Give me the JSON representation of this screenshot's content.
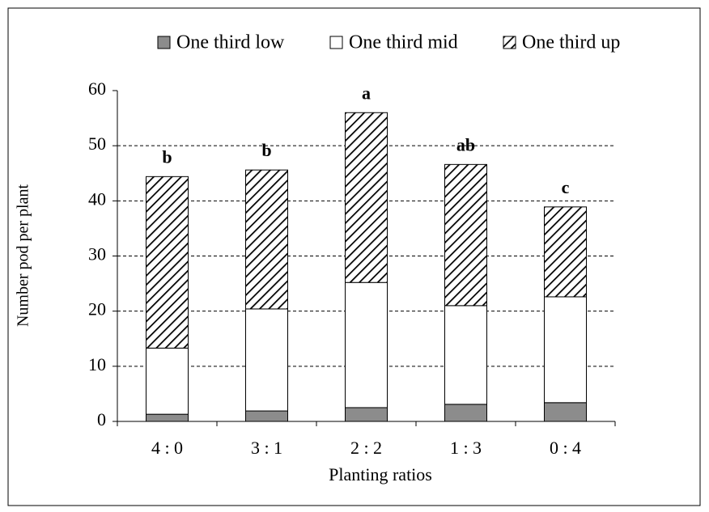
{
  "chart_data": {
    "type": "stacked_bar",
    "ylabel": "Number pod per plant",
    "xlabel": "Planting ratios",
    "categories": [
      "4 : 0",
      "3 : 1",
      "2 : 2",
      "1 : 3",
      "0 : 4"
    ],
    "series": [
      {
        "name": "One third low",
        "color": "#8c8c8c",
        "values": [
          1.3,
          1.9,
          2.5,
          3.1,
          3.4
        ]
      },
      {
        "name": "One third mid",
        "color": "#ffffff",
        "values": [
          12.0,
          18.5,
          22.7,
          17.9,
          19.2
        ]
      },
      {
        "name": "One third up",
        "color": "#000000",
        "hatch": true,
        "values": [
          31.1,
          25.2,
          30.8,
          25.6,
          16.3
        ]
      }
    ],
    "annotations": [
      "b",
      "b",
      "a",
      "ab",
      "c"
    ],
    "ylim": [
      0,
      60
    ],
    "yticks": [
      0,
      10,
      20,
      30,
      40,
      50,
      60
    ],
    "grid": true
  }
}
